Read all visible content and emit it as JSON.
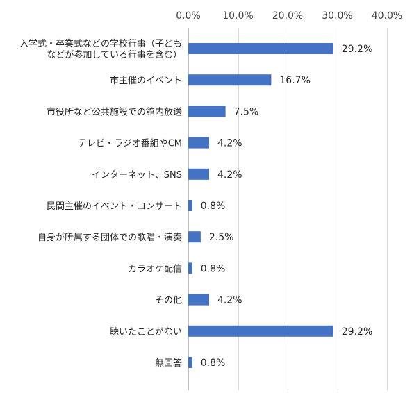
{
  "chart_data": {
    "type": "bar",
    "orientation": "horizontal",
    "categories": [
      [
        "入学式・卒業式などの学校行事（子ども",
        "などが参加している行事を含む）"
      ],
      [
        "市主催のイベント"
      ],
      [
        "市役所など公共施設での館内放送"
      ],
      [
        "テレビ・ラジオ番組やCM"
      ],
      [
        "インターネット、SNS"
      ],
      [
        "民間主催のイベント・コンサート"
      ],
      [
        "自身が所属する団体での歌唱・演奏"
      ],
      [
        "カラオケ配信"
      ],
      [
        "その他"
      ],
      [
        "聴いたことがない"
      ],
      [
        "無回答"
      ]
    ],
    "values": [
      29.2,
      16.7,
      7.5,
      4.2,
      4.2,
      0.8,
      2.5,
      0.8,
      4.2,
      29.2,
      0.8
    ],
    "value_labels": [
      "29.2%",
      "16.7%",
      "7.5%",
      "4.2%",
      "4.2%",
      "0.8%",
      "2.5%",
      "0.8%",
      "4.2%",
      "29.2%",
      "0.8%"
    ],
    "xticks": [
      0,
      10,
      20,
      30,
      40
    ],
    "xtick_labels": [
      "0.0%",
      "10.0%",
      "20.0%",
      "30.0%",
      "40.0%"
    ],
    "xlim": [
      0,
      40
    ],
    "axis_position": "top",
    "grid": true,
    "colors": {
      "bar": "#4472C4",
      "grid": "#D9D9D9",
      "axis": "#BFBFBF"
    }
  }
}
